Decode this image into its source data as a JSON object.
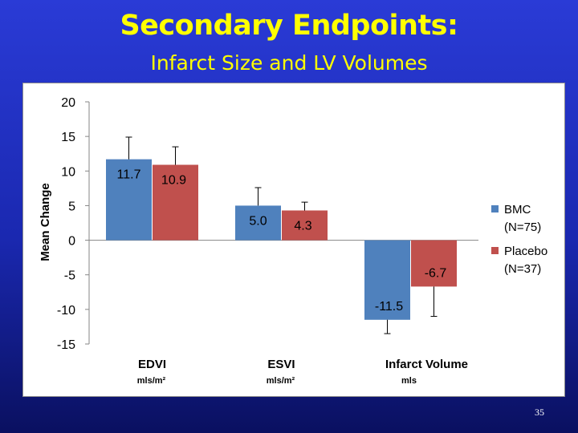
{
  "slide": {
    "title": "Secondary Endpoints:",
    "subtitle": "Infarct Size and LV Volumes",
    "slide_number": "35"
  },
  "chart_data": {
    "type": "bar",
    "categories": [
      "EDVI",
      "ESVI",
      "Infarct Volume"
    ],
    "category_units": [
      "mls/m²",
      "mls/m²",
      "mls"
    ],
    "ylabel": "Mean Change",
    "ylim": [
      -15,
      20
    ],
    "yticks": [
      20,
      15,
      10,
      5,
      0,
      -5,
      -10,
      -15
    ],
    "series": [
      {
        "name": "BMC",
        "legend_line2": "(N=75)",
        "color": "#4f81bd",
        "values": [
          11.7,
          5.0,
          -11.5
        ],
        "labels": [
          "11.7",
          "5.0",
          "-11.5"
        ],
        "error_ends": [
          14.9,
          7.6,
          -13.5
        ]
      },
      {
        "name": "Placebo",
        "legend_line2": "(N=37)",
        "color": "#c0504d",
        "values": [
          10.9,
          4.3,
          -6.7
        ],
        "labels": [
          "10.9",
          "4.3",
          "-6.7"
        ],
        "error_ends": [
          13.5,
          5.5,
          -11.0
        ]
      }
    ],
    "legend_position": "right",
    "grid": false
  }
}
